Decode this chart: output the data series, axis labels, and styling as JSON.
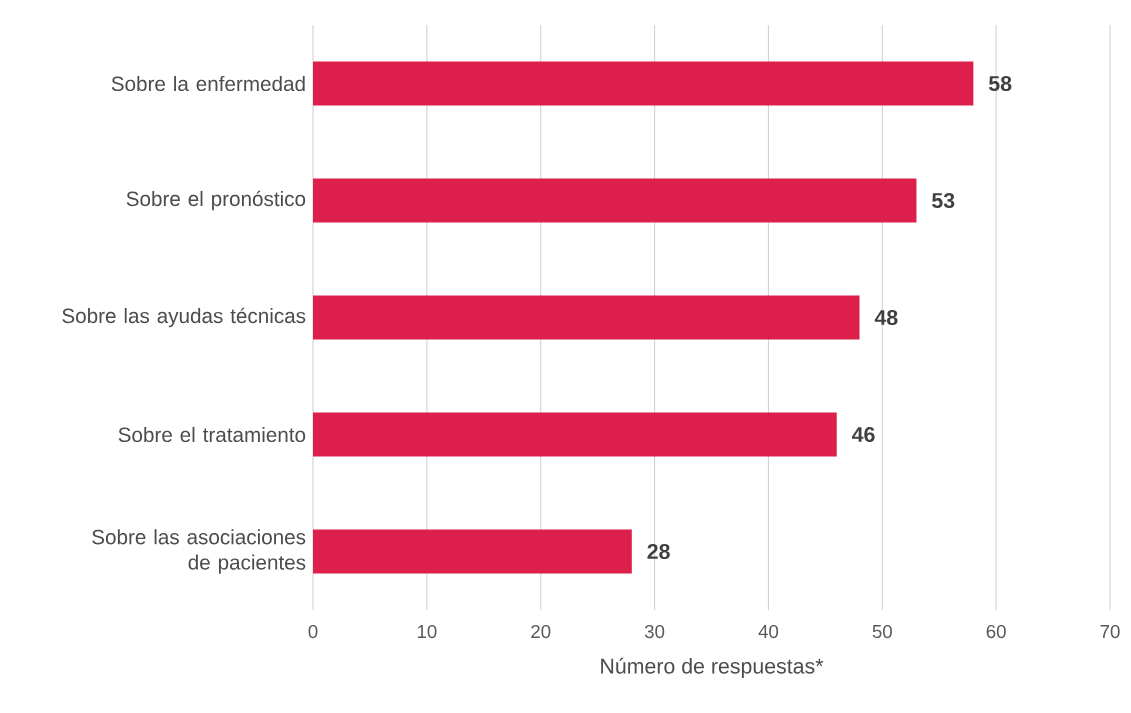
{
  "chart_data": {
    "type": "bar",
    "orientation": "horizontal",
    "categories": [
      "Sobre la enfermedad",
      "Sobre el pronóstico",
      "Sobre las ayudas técnicas",
      "Sobre el tratamiento",
      "Sobre las asociaciones de pacientes"
    ],
    "values": [
      58,
      53,
      48,
      46,
      28
    ],
    "color": "#dc1f4b",
    "xlabel": "Número de respuestas*",
    "xlim": [
      0,
      70
    ],
    "xticks": [
      0,
      10,
      20,
      30,
      40,
      50,
      60,
      70
    ],
    "grid": "x",
    "data_labels": true
  }
}
